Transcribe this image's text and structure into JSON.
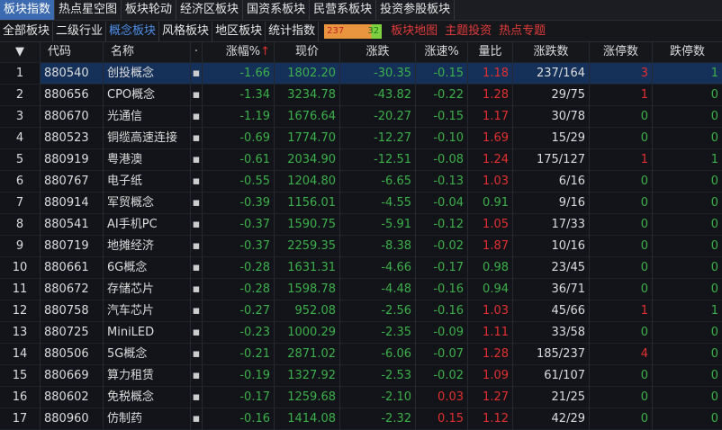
{
  "tabs": [
    "板块指数",
    "热点星空图",
    "板块轮动",
    "经济区板块",
    "国资系板块",
    "民营系板块",
    "投资参股板块"
  ],
  "subtabs": [
    "全部板块",
    "二级行业",
    "概念板块",
    "风格板块",
    "地区板块",
    "统计指数"
  ],
  "breadth": {
    "up": "237",
    "down": "32"
  },
  "links": [
    "板块地图",
    "主题投资",
    "热点专题"
  ],
  "headers": [
    "代码",
    "名称",
    "涨幅%",
    "现价",
    "涨跌",
    "涨速%",
    "量比",
    "涨跌数",
    "涨停数",
    "跌停数"
  ],
  "sort_arrow": "↑",
  "colors": {
    "up": "#e23030",
    "down": "#3cb04a",
    "accent": "#3b6ab0"
  },
  "rows": [
    [
      "1",
      "880540",
      "创投概念",
      "-1.66",
      "1802.20",
      "-30.35",
      "-0.15",
      "1.18",
      "237/164",
      "3",
      "1"
    ],
    [
      "2",
      "880656",
      "CPO概念",
      "-1.34",
      "3234.78",
      "-43.82",
      "-0.22",
      "1.28",
      "29/75",
      "1",
      "0"
    ],
    [
      "3",
      "880670",
      "光通信",
      "-1.19",
      "1676.64",
      "-20.27",
      "-0.15",
      "1.17",
      "30/78",
      "0",
      "0"
    ],
    [
      "4",
      "880523",
      "铜缆高速连接",
      "-0.69",
      "1774.70",
      "-12.27",
      "-0.10",
      "1.69",
      "15/29",
      "0",
      "0"
    ],
    [
      "5",
      "880919",
      "粤港澳",
      "-0.61",
      "2034.90",
      "-12.51",
      "-0.08",
      "1.24",
      "175/127",
      "1",
      "1"
    ],
    [
      "6",
      "880767",
      "电子纸",
      "-0.55",
      "1204.80",
      "-6.65",
      "-0.13",
      "1.03",
      "6/16",
      "0",
      "0"
    ],
    [
      "7",
      "880914",
      "军贸概念",
      "-0.39",
      "1156.01",
      "-4.55",
      "-0.04",
      "0.91",
      "9/16",
      "0",
      "0"
    ],
    [
      "8",
      "880541",
      "AI手机PC",
      "-0.37",
      "1590.75",
      "-5.91",
      "-0.12",
      "1.05",
      "17/33",
      "0",
      "0"
    ],
    [
      "9",
      "880719",
      "地摊经济",
      "-0.37",
      "2259.35",
      "-8.38",
      "-0.02",
      "1.87",
      "10/16",
      "0",
      "0"
    ],
    [
      "10",
      "880661",
      "6G概念",
      "-0.28",
      "1631.31",
      "-4.66",
      "-0.17",
      "0.98",
      "23/45",
      "0",
      "0"
    ],
    [
      "11",
      "880672",
      "存储芯片",
      "-0.28",
      "1598.78",
      "-4.48",
      "-0.16",
      "0.94",
      "36/71",
      "0",
      "0"
    ],
    [
      "12",
      "880758",
      "汽车芯片",
      "-0.27",
      "952.08",
      "-2.56",
      "-0.16",
      "1.03",
      "45/66",
      "1",
      "1"
    ],
    [
      "13",
      "880725",
      "MiniLED",
      "-0.23",
      "1000.29",
      "-2.35",
      "-0.09",
      "1.11",
      "33/58",
      "0",
      "0"
    ],
    [
      "14",
      "880506",
      "5G概念",
      "-0.21",
      "2871.02",
      "-6.06",
      "-0.07",
      "1.28",
      "185/237",
      "4",
      "0"
    ],
    [
      "15",
      "880669",
      "算力租赁",
      "-0.19",
      "1327.92",
      "-2.53",
      "-0.02",
      "1.09",
      "61/107",
      "0",
      "0"
    ],
    [
      "16",
      "880602",
      "免税概念",
      "-0.17",
      "1259.68",
      "-2.10",
      "0.03",
      "1.27",
      "21/25",
      "0",
      "0"
    ],
    [
      "17",
      "880960",
      "仿制药",
      "-0.16",
      "1414.08",
      "-2.32",
      "0.15",
      "1.12",
      "42/29",
      "0",
      "0"
    ]
  ]
}
